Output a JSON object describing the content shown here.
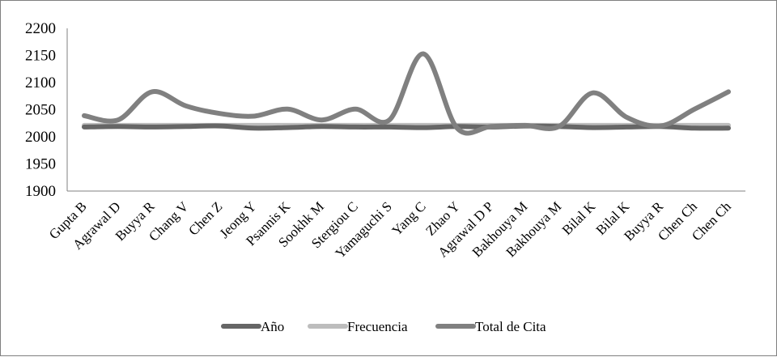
{
  "chart_data": {
    "type": "line",
    "title": "",
    "xlabel": "",
    "ylabel": "",
    "ylim": [
      1900,
      2200
    ],
    "yticks": [
      1900,
      1950,
      2000,
      2050,
      2100,
      2150,
      2200
    ],
    "grid": false,
    "legend_position": "bottom",
    "smooth": true,
    "categories": [
      "Gupta B",
      "Agrawal D",
      "Buyya R",
      "Chang V",
      "Chen Z",
      "Jeong Y",
      "Psannis K",
      "Sookhk M",
      "Stergiou C",
      "Yamaguchi S",
      "Yang C",
      "Zhao Y",
      "Agrawal D P",
      "Bakhouya M",
      "Bakhouya M",
      "Bilal K",
      "Bilal K",
      "Buyya R",
      "Chen Ch",
      "Chen Ch"
    ],
    "series": [
      {
        "name": "Año",
        "color": "#666666",
        "values": [
          2018,
          2019,
          2018,
          2019,
          2020,
          2016,
          2017,
          2019,
          2018,
          2018,
          2017,
          2019,
          2018,
          2020,
          2019,
          2017,
          2018,
          2019,
          2016,
          2016
        ]
      },
      {
        "name": "Frecuencia",
        "color": "#bdbdbd",
        "values": [
          2021,
          2021,
          2021,
          2021,
          2021,
          2021,
          2021,
          2021,
          2021,
          2021,
          2021,
          2021,
          2021,
          2021,
          2021,
          2021,
          2021,
          2021,
          2021,
          2021
        ]
      },
      {
        "name": "Total de Cita",
        "color": "#808080",
        "values": [
          2039,
          2031,
          2083,
          2057,
          2043,
          2038,
          2051,
          2031,
          2051,
          2031,
          2153,
          2016,
          2019,
          2021,
          2019,
          2081,
          2036,
          2020,
          2051,
          2083
        ]
      }
    ]
  }
}
